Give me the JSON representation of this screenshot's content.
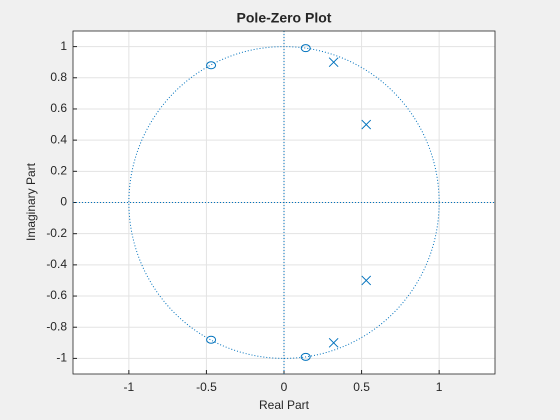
{
  "chart_data": {
    "type": "pole-zero",
    "title": "Pole-Zero Plot",
    "x_label": "Real Part",
    "y_label": "Imaginary Part",
    "zeros": {
      "x": [
        0.14,
        -0.47,
        -0.47,
        0.14
      ],
      "y": [
        0.99,
        0.88,
        -0.88,
        -0.99
      ]
    },
    "poles": {
      "x": [
        0.32,
        0.53,
        0.53,
        0.32
      ],
      "y": [
        0.9,
        0.5,
        -0.5,
        -0.9
      ]
    },
    "color": "#0072bd",
    "xlim": [
      -1.36,
      1.36
    ],
    "ylim": [
      -1.1,
      1.1
    ],
    "xticks": [
      -1,
      -0.5,
      0,
      0.5,
      1
    ],
    "yticks": [
      -1,
      -0.8,
      -0.6,
      -0.4,
      -0.2,
      0,
      0.2,
      0.4,
      0.6,
      0.8,
      1
    ],
    "grid": true
  }
}
